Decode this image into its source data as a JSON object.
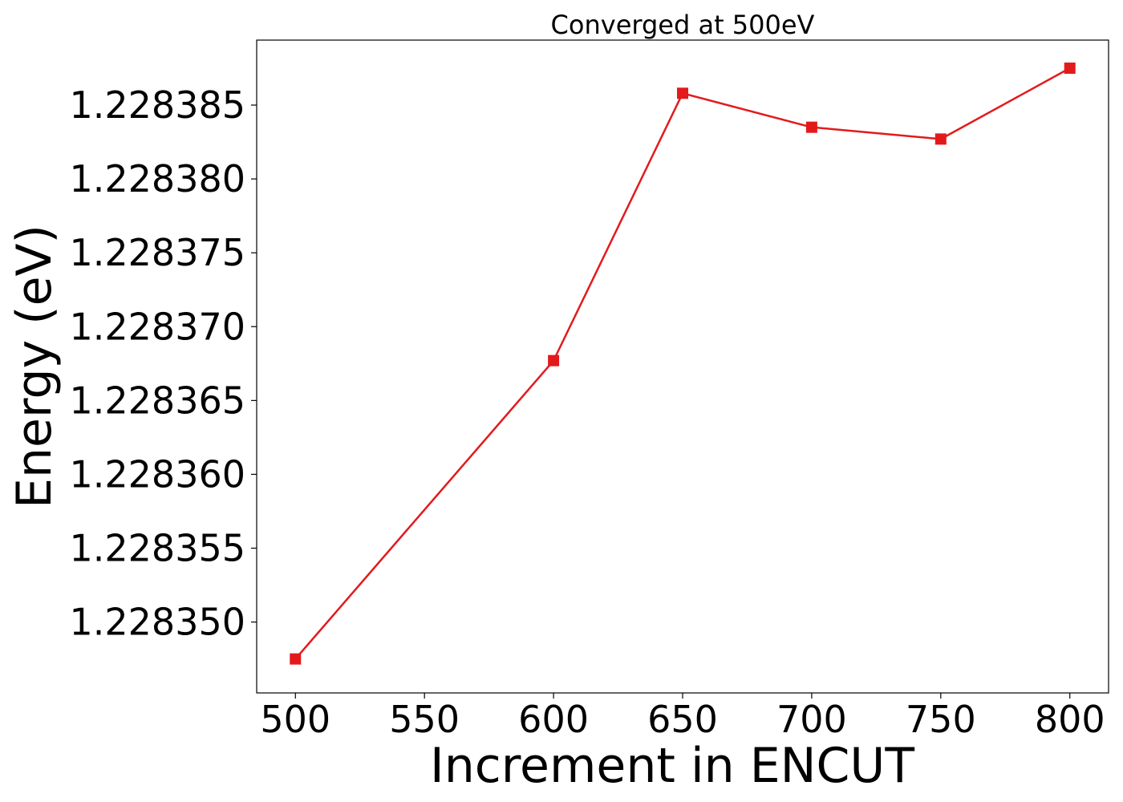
{
  "chart_data": {
    "type": "line",
    "title": "Converged at 500eV",
    "xlabel": "Increment in ENCUT",
    "ylabel": "Energy (eV)",
    "x": [
      500,
      600,
      650,
      700,
      750,
      800
    ],
    "series": [
      {
        "values": [
          1.2283475,
          1.2283677,
          1.2283858,
          1.2283835,
          1.2283827,
          1.2283875
        ],
        "color": "#e31a1c",
        "marker": "square"
      }
    ],
    "xticks": [
      500,
      550,
      600,
      650,
      700,
      750,
      800
    ],
    "xtick_labels": [
      "500",
      "550",
      "600",
      "650",
      "700",
      "750",
      "800"
    ],
    "yticks": [
      1.22835,
      1.228355,
      1.22836,
      1.228365,
      1.22837,
      1.228375,
      1.22838,
      1.228385
    ],
    "ytick_labels": [
      "1.228350",
      "1.228355",
      "1.228360",
      "1.228365",
      "1.228370",
      "1.228375",
      "1.228380",
      "1.228385"
    ],
    "xlim": [
      485,
      815
    ],
    "ylim": [
      1.2283452,
      1.2283894
    ],
    "grid": false,
    "legend": "none"
  }
}
